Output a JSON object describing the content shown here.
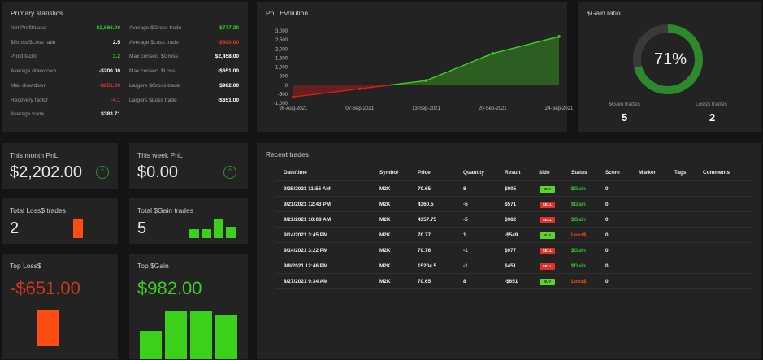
{
  "primary_statistics": {
    "title": "Primary statistics",
    "left": [
      {
        "label": "Net Profit/Loss",
        "value": "$2,686.00",
        "color": "green"
      },
      {
        "label": "$Gross/$Loss ratio",
        "value": "2.5",
        "color": "white"
      },
      {
        "label": "Profit factor",
        "value": "3.2",
        "color": "green"
      },
      {
        "label": "Average drawdown",
        "value": "-$200.00",
        "color": "white"
      },
      {
        "label": "Max drawdown",
        "value": "-$651.00",
        "color": "red"
      },
      {
        "label": "Recovery factor",
        "value": "-4.1",
        "color": "red"
      },
      {
        "label": "Average trade",
        "value": "$383.71",
        "color": "white"
      }
    ],
    "right": [
      {
        "label": "Average $Gross trade",
        "value": "$777.20",
        "color": "green"
      },
      {
        "label": "Average $Loss trade",
        "value": "-$600.00",
        "color": "red"
      },
      {
        "label": "Max consec. $Gross",
        "value": "$2,458.00",
        "color": "white"
      },
      {
        "label": "Max consec. $Loss",
        "value": "-$651.00",
        "color": "white"
      },
      {
        "label": "Largers $Gross trade",
        "value": "$982.00",
        "color": "white"
      },
      {
        "label": "Largers $Loss trade",
        "value": "-$651.00",
        "color": "white"
      }
    ]
  },
  "pnl_evolution": {
    "title": "PnL Evolution",
    "chart_data": {
      "type": "area",
      "x": [
        "26-Aug-2021",
        "07-Sep-2021",
        "13-Sep-2021",
        "20-Sep-2021",
        "24-Sep-2021"
      ],
      "y_ticks": [
        "3,000",
        "2,500",
        "2,000",
        "1,500",
        "1,000",
        "500",
        "0",
        "-500",
        "-1,000"
      ],
      "ylim": [
        -1000,
        3000
      ],
      "points": [
        {
          "x": "26-Aug-2021",
          "y": -651
        },
        {
          "x": "07-Sep-2021",
          "y": -200
        },
        {
          "x": "13-Sep-2021",
          "y": 250
        },
        {
          "x": "20-Sep-2021",
          "y": 1750
        },
        {
          "x": "24-Sep-2021",
          "y": 2686
        }
      ],
      "colors": {
        "positive": "#3fcf1f",
        "negative": "#e01b1b"
      }
    }
  },
  "gain_ratio": {
    "title": "$Gain ratio",
    "percent_text": "71%",
    "percent_value": 71,
    "gain_label": "$Gain trades",
    "gain_count": "5",
    "loss_label": "Loss$ trades",
    "loss_count": "2"
  },
  "cards": {
    "month": {
      "title": "This month PnL",
      "value": "$2,202.00"
    },
    "week": {
      "title": "This week PnL",
      "value": "$0.00"
    },
    "total_loss": {
      "title": "Total Loss$ trades",
      "value": "2"
    },
    "total_gain": {
      "title": "Total $Gain trades",
      "value": "5"
    },
    "top_loss": {
      "title": "Top Loss$",
      "value": "-$651.00"
    },
    "top_gain": {
      "title": "Top $Gain",
      "value": "$982.00"
    }
  },
  "recent_trades": {
    "title": "Recent trades",
    "headers": [
      "Date/time",
      "Symbol",
      "Price",
      "Quantity",
      "Result",
      "Side",
      "Status",
      "Score",
      "Marker",
      "Tags",
      "Comments"
    ],
    "rows": [
      {
        "date": "9/25/2021 11:56 AM",
        "symbol": "M2K",
        "price": "70.65",
        "qty": "8",
        "result": "$905",
        "side": "BUY",
        "status": "$Gain",
        "score": "0"
      },
      {
        "date": "9/21/2021 12:43 PM",
        "symbol": "M2K",
        "price": "4360.5",
        "qty": "-5",
        "result": "$571",
        "side": "SELL",
        "status": "$Gain",
        "score": "0"
      },
      {
        "date": "9/21/2021 10:08 AM",
        "symbol": "M2K",
        "price": "4357.75",
        "qty": "-5",
        "result": "$982",
        "side": "SELL",
        "status": "$Gain",
        "score": "0"
      },
      {
        "date": "9/14/2021 3:45 PM",
        "symbol": "M2K",
        "price": "70.77",
        "qty": "1",
        "result": "-$549",
        "side": "BUY",
        "status": "Loss$",
        "score": "0"
      },
      {
        "date": "9/14/2021 3:22 PM",
        "symbol": "M2K",
        "price": "70.76",
        "qty": "-1",
        "result": "$977",
        "side": "SELL",
        "status": "$Gain",
        "score": "0"
      },
      {
        "date": "9/8/2021 12:46 PM",
        "symbol": "M2K",
        "price": "15204.5",
        "qty": "-1",
        "result": "$451",
        "side": "SELL",
        "status": "$Gain",
        "score": "0"
      },
      {
        "date": "8/27/2021 9:34 AM",
        "symbol": "M2K",
        "price": "70.65",
        "qty": "8",
        "result": "-$651",
        "side": "BUY",
        "status": "Loss$",
        "score": "0"
      }
    ]
  }
}
